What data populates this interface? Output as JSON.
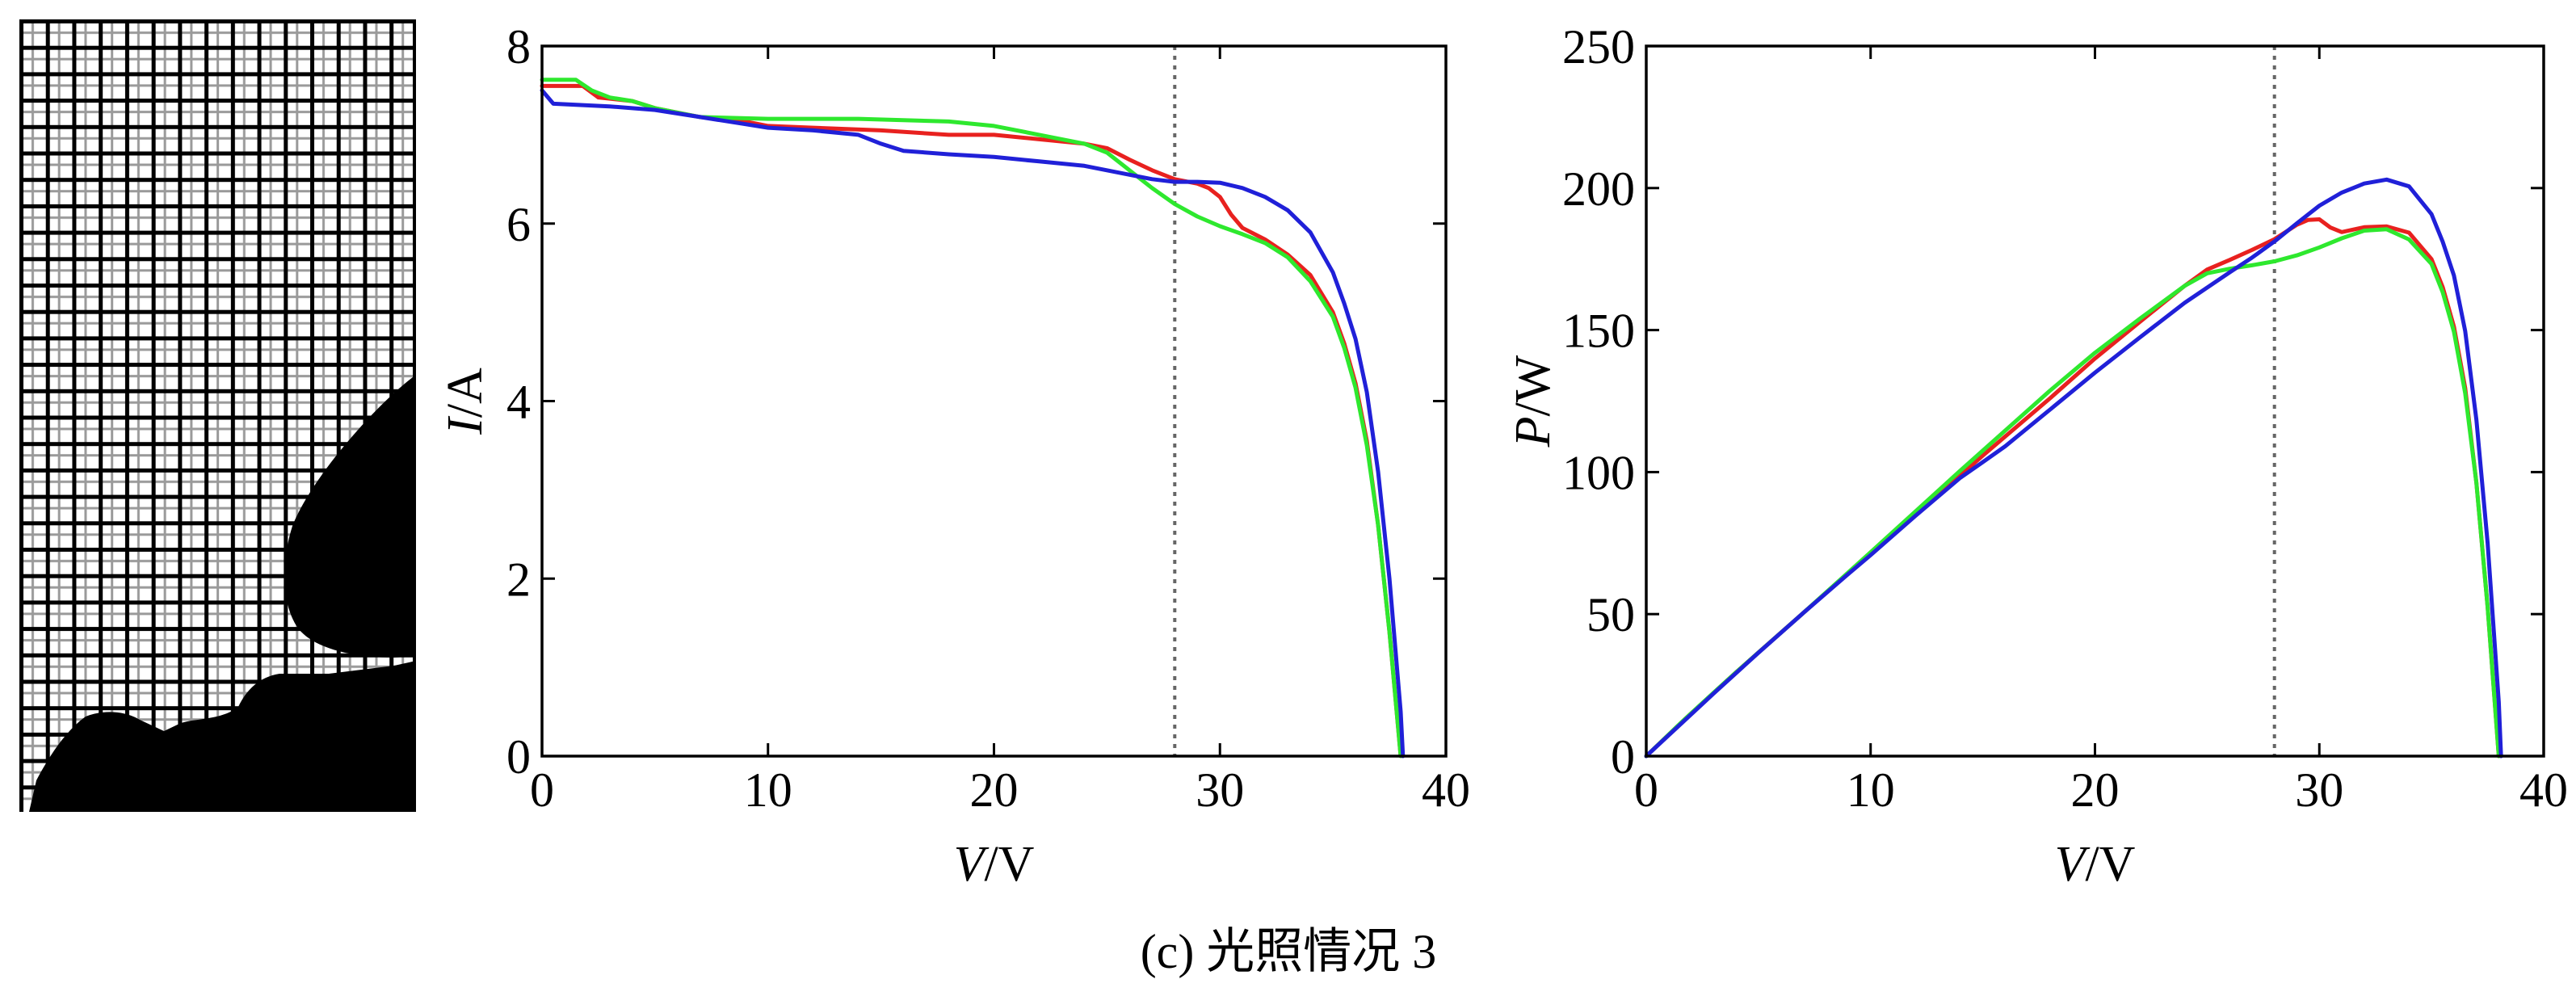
{
  "figure": {
    "caption": "(c) 光照情况 3"
  },
  "chart_data": [
    {
      "type": "line",
      "xlabel": "V/V",
      "ylabel": "I/A",
      "xlim": [
        0,
        40
      ],
      "ylim": [
        0,
        8
      ],
      "xticks": [
        0,
        10,
        20,
        30,
        40
      ],
      "yticks": [
        0,
        2,
        4,
        6,
        8
      ],
      "grid": false,
      "reference_lines": [
        {
          "x": 28,
          "color": "#666666",
          "dashed": true
        }
      ],
      "series": [
        {
          "color": "#e8211f",
          "x": [
            0,
            1.8,
            2.5,
            4,
            5,
            7,
            9,
            10,
            12,
            15,
            18,
            20,
            22,
            24,
            25,
            26,
            27,
            28,
            29,
            29.5,
            30,
            30.5,
            31,
            32,
            33,
            34,
            35,
            35.5,
            36,
            36.5,
            37,
            37.5,
            38
          ],
          "y": [
            7.55,
            7.55,
            7.42,
            7.38,
            7.3,
            7.2,
            7.15,
            7.1,
            7.08,
            7.05,
            7.0,
            7.0,
            6.95,
            6.9,
            6.85,
            6.72,
            6.6,
            6.5,
            6.45,
            6.4,
            6.3,
            6.1,
            5.95,
            5.82,
            5.65,
            5.42,
            5.0,
            4.65,
            4.2,
            3.55,
            2.6,
            1.4,
            0
          ]
        },
        {
          "color": "#2ee82e",
          "x": [
            0,
            1.5,
            2.2,
            3,
            4,
            5,
            7,
            10,
            14,
            18,
            20,
            22,
            24,
            25,
            26,
            27,
            28,
            29,
            30,
            31,
            32,
            33,
            34,
            35,
            35.5,
            36,
            36.5,
            37,
            37.5,
            38
          ],
          "y": [
            7.62,
            7.62,
            7.5,
            7.42,
            7.38,
            7.3,
            7.2,
            7.18,
            7.18,
            7.15,
            7.1,
            7.0,
            6.9,
            6.8,
            6.6,
            6.4,
            6.22,
            6.08,
            5.97,
            5.88,
            5.78,
            5.62,
            5.35,
            4.95,
            4.6,
            4.15,
            3.5,
            2.6,
            1.4,
            0
          ]
        },
        {
          "color": "#2020d8",
          "x": [
            0,
            0.5,
            3,
            5,
            7,
            9,
            10,
            12,
            14,
            15,
            16,
            18,
            20,
            22,
            24,
            26,
            27,
            28,
            29,
            30,
            31,
            32,
            33,
            34,
            35,
            35.5,
            36,
            36.5,
            37,
            37.5,
            38,
            38.1
          ],
          "y": [
            7.5,
            7.35,
            7.32,
            7.28,
            7.2,
            7.12,
            7.08,
            7.05,
            7.0,
            6.9,
            6.82,
            6.78,
            6.75,
            6.7,
            6.65,
            6.55,
            6.5,
            6.47,
            6.47,
            6.46,
            6.4,
            6.3,
            6.15,
            5.9,
            5.45,
            5.1,
            4.7,
            4.1,
            3.2,
            2.0,
            0.5,
            0
          ]
        }
      ]
    },
    {
      "type": "line",
      "xlabel": "V/V",
      "ylabel": "P/W",
      "xlim": [
        0,
        40
      ],
      "ylim": [
        0,
        250
      ],
      "xticks": [
        0,
        10,
        20,
        30,
        40
      ],
      "yticks": [
        0,
        50,
        100,
        150,
        200,
        250
      ],
      "grid": false,
      "reference_lines": [
        {
          "x": 28,
          "color": "#666666",
          "dashed": true
        }
      ],
      "series": [
        {
          "color": "#e8211f",
          "x": [
            0,
            1.8,
            2.5,
            4,
            5,
            7,
            9,
            10,
            12,
            15,
            18,
            20,
            22,
            24,
            25,
            26,
            27,
            28,
            29,
            29.5,
            30,
            30.5,
            31,
            32,
            33,
            34,
            35,
            35.5,
            36,
            36.5,
            37,
            37.5,
            38
          ],
          "y": [
            0,
            13.6,
            18.6,
            29.5,
            36.5,
            50.4,
            64.4,
            71,
            85,
            105.8,
            126,
            140,
            152.9,
            165.6,
            171.3,
            174.7,
            178.2,
            182,
            187.1,
            188.8,
            189,
            186.1,
            184.5,
            186.2,
            186.5,
            184.3,
            175,
            165.1,
            151.2,
            129.6,
            96.2,
            52.5,
            0
          ]
        },
        {
          "color": "#2ee82e",
          "x": [
            0,
            1.5,
            2.2,
            3,
            4,
            5,
            7,
            10,
            14,
            18,
            20,
            22,
            24,
            25,
            26,
            27,
            28,
            29,
            30,
            31,
            32,
            33,
            34,
            35,
            35.5,
            36,
            36.5,
            37,
            37.5,
            38
          ],
          "y": [
            0,
            11.4,
            16.5,
            22.3,
            29.5,
            36.5,
            50.4,
            71.8,
            100.5,
            128.7,
            142,
            154,
            165.6,
            170,
            171.6,
            172.8,
            174.2,
            176.3,
            179.1,
            182.3,
            185,
            185.5,
            181.9,
            173.3,
            163.3,
            149.4,
            127.8,
            96.2,
            52.5,
            0
          ]
        },
        {
          "color": "#2020d8",
          "x": [
            0,
            0.5,
            3,
            5,
            7,
            9,
            10,
            12,
            14,
            15,
            16,
            18,
            20,
            22,
            24,
            26,
            27,
            28,
            29,
            30,
            31,
            32,
            33,
            34,
            35,
            35.5,
            36,
            36.5,
            37,
            37.5,
            38,
            38.1
          ],
          "y": [
            0,
            3.7,
            22,
            36.4,
            50.4,
            64.1,
            70.8,
            84.6,
            98,
            103.5,
            109.1,
            122,
            135,
            147.4,
            159.6,
            170.3,
            175.5,
            181.2,
            187.6,
            193.8,
            198.4,
            201.6,
            203,
            200.6,
            190.8,
            181.1,
            169.2,
            149.7,
            118.4,
            75,
            19,
            0
          ]
        }
      ]
    }
  ]
}
